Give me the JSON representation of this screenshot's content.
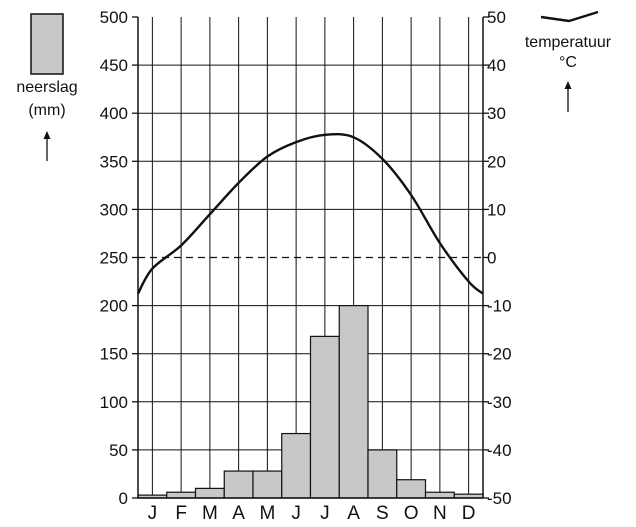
{
  "chart_data": {
    "type": "climate-diagram",
    "categories": [
      "J",
      "F",
      "M",
      "A",
      "M",
      "J",
      "J",
      "A",
      "S",
      "O",
      "N",
      "D"
    ],
    "series": [
      {
        "name": "neerslag",
        "type": "bar",
        "unit": "(mm)",
        "axis": "left",
        "values": [
          3,
          6,
          10,
          28,
          28,
          67,
          168,
          200,
          50,
          19,
          6,
          4
        ]
      },
      {
        "name": "temperatuur",
        "type": "line",
        "unit": "°C",
        "axis": "right",
        "values": [
          -2.3,
          2.5,
          9,
          15.5,
          21,
          24,
          25.5,
          25,
          20.5,
          13,
          3,
          -5
        ],
        "boundary_values": {
          "start": -7.5,
          "end": -7.5
        }
      }
    ],
    "y_left": {
      "label": "neerslag",
      "unit": "(mm)",
      "range": [
        0,
        500
      ],
      "ticks": [
        "0",
        "50",
        "100",
        "150",
        "200",
        "250",
        "300",
        "350",
        "400",
        "450",
        "500"
      ]
    },
    "y_right": {
      "label": "temperatuur",
      "unit": "°C",
      "range": [
        -50,
        50
      ],
      "ticks": [
        "-50",
        "-40",
        "-30",
        "-20",
        "-10",
        "0",
        "10",
        "20",
        "30",
        "40",
        "50"
      ]
    },
    "reference_line": {
      "value": 0,
      "axis": "right",
      "style": "dashed"
    },
    "grid": true,
    "colors": {
      "bars": "#c8c8c8",
      "lines": "#111111"
    }
  },
  "legend": {
    "precip_label": "neerslag",
    "precip_unit": "(mm)",
    "temp_label": "temperatuur",
    "temp_unit": "°C"
  }
}
